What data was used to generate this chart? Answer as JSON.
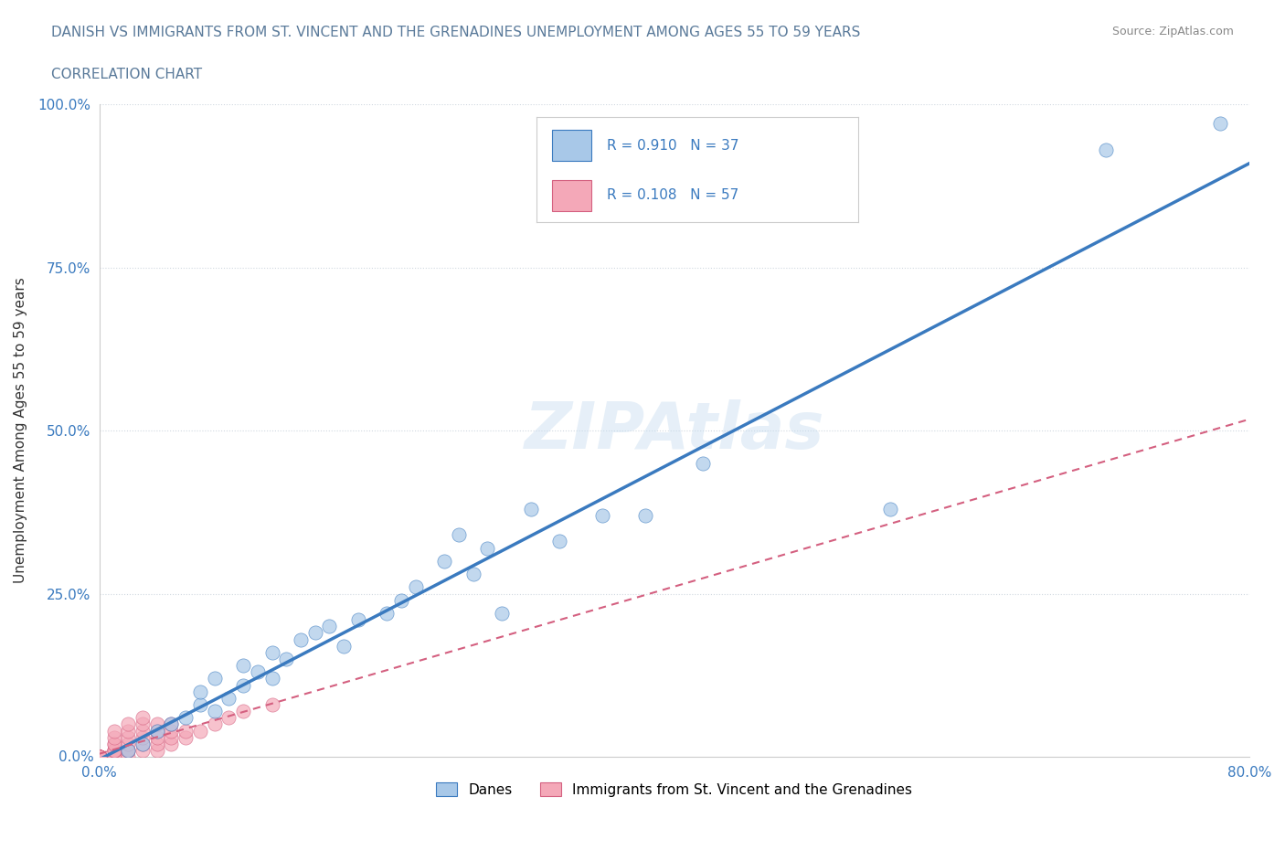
{
  "title_line1": "DANISH VS IMMIGRANTS FROM ST. VINCENT AND THE GRENADINES UNEMPLOYMENT AMONG AGES 55 TO 59 YEARS",
  "title_line2": "CORRELATION CHART",
  "source_text": "Source: ZipAtlas.com",
  "xlabel": "",
  "ylabel": "Unemployment Among Ages 55 to 59 years",
  "xlim": [
    0.0,
    0.8
  ],
  "ylim": [
    0.0,
    1.0
  ],
  "danes_R": 0.91,
  "danes_N": 37,
  "immigrants_R": 0.108,
  "immigrants_N": 57,
  "danes_color": "#a8c8e8",
  "danes_line_color": "#3a7abf",
  "immigrants_color": "#f4a8b8",
  "immigrants_line_color": "#d46080",
  "watermark": "ZIPAtlas",
  "legend_label_danes": "Danes",
  "legend_label_immigrants": "Immigrants from St. Vincent and the Grenadines",
  "background_color": "#ffffff",
  "grid_color": "#d0d8e0",
  "title_color": "#5a7a9a",
  "danes_scatter": {
    "x": [
      0.02,
      0.03,
      0.04,
      0.05,
      0.06,
      0.07,
      0.07,
      0.08,
      0.08,
      0.09,
      0.1,
      0.1,
      0.11,
      0.12,
      0.12,
      0.13,
      0.14,
      0.15,
      0.16,
      0.17,
      0.18,
      0.2,
      0.21,
      0.22,
      0.24,
      0.25,
      0.26,
      0.27,
      0.28,
      0.3,
      0.32,
      0.35,
      0.38,
      0.42,
      0.55,
      0.7,
      0.78
    ],
    "y": [
      0.01,
      0.02,
      0.04,
      0.05,
      0.06,
      0.08,
      0.1,
      0.07,
      0.12,
      0.09,
      0.11,
      0.14,
      0.13,
      0.16,
      0.12,
      0.15,
      0.18,
      0.19,
      0.2,
      0.17,
      0.21,
      0.22,
      0.24,
      0.26,
      0.3,
      0.34,
      0.28,
      0.32,
      0.22,
      0.38,
      0.33,
      0.37,
      0.37,
      0.45,
      0.38,
      0.93,
      0.97
    ]
  },
  "immigrants_scatter": {
    "x": [
      0.0,
      0.0,
      0.0,
      0.0,
      0.0,
      0.0,
      0.0,
      0.0,
      0.0,
      0.0,
      0.0,
      0.0,
      0.0,
      0.0,
      0.0,
      0.0,
      0.0,
      0.01,
      0.01,
      0.01,
      0.01,
      0.01,
      0.01,
      0.01,
      0.01,
      0.01,
      0.01,
      0.01,
      0.02,
      0.02,
      0.02,
      0.02,
      0.02,
      0.02,
      0.02,
      0.03,
      0.03,
      0.03,
      0.03,
      0.03,
      0.03,
      0.04,
      0.04,
      0.04,
      0.04,
      0.04,
      0.05,
      0.05,
      0.05,
      0.05,
      0.06,
      0.06,
      0.07,
      0.08,
      0.09,
      0.1,
      0.12
    ],
    "y": [
      0.0,
      0.0,
      0.0,
      0.0,
      0.0,
      0.0,
      0.0,
      0.0,
      0.0,
      0.0,
      0.0,
      0.0,
      0.0,
      0.0,
      0.0,
      0.0,
      0.0,
      0.0,
      0.0,
      0.0,
      0.01,
      0.01,
      0.01,
      0.01,
      0.02,
      0.02,
      0.03,
      0.04,
      0.0,
      0.01,
      0.01,
      0.02,
      0.03,
      0.04,
      0.05,
      0.01,
      0.02,
      0.03,
      0.04,
      0.05,
      0.06,
      0.01,
      0.02,
      0.03,
      0.04,
      0.05,
      0.02,
      0.03,
      0.04,
      0.05,
      0.03,
      0.04,
      0.04,
      0.05,
      0.06,
      0.07,
      0.08
    ]
  }
}
